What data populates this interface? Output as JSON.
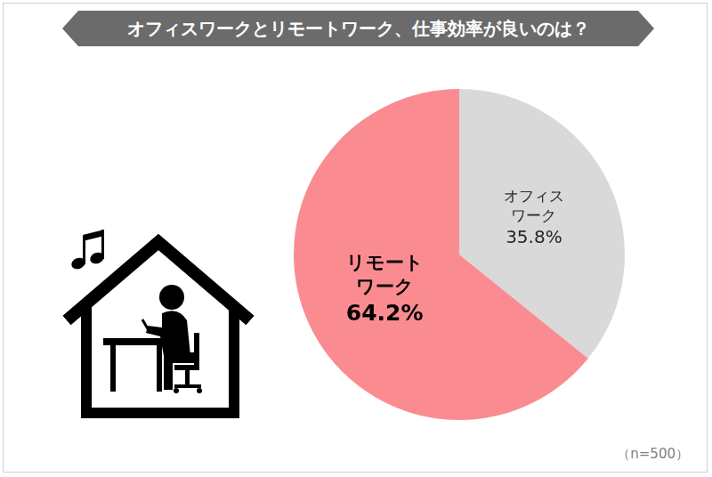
{
  "chart_data": {
    "type": "pie",
    "title": "オフィスワークとリモートワーク、仕事効率が良いのは？",
    "categories": [
      "オフィス\nワーク",
      "リモート\nワーク"
    ],
    "values": [
      35.8,
      64.2
    ],
    "value_labels": [
      "35.8%",
      "64.2%"
    ],
    "colors": [
      "#d9d9d9",
      "#fa8c91"
    ],
    "data_labels": true,
    "annotation": "（n=500）"
  }
}
